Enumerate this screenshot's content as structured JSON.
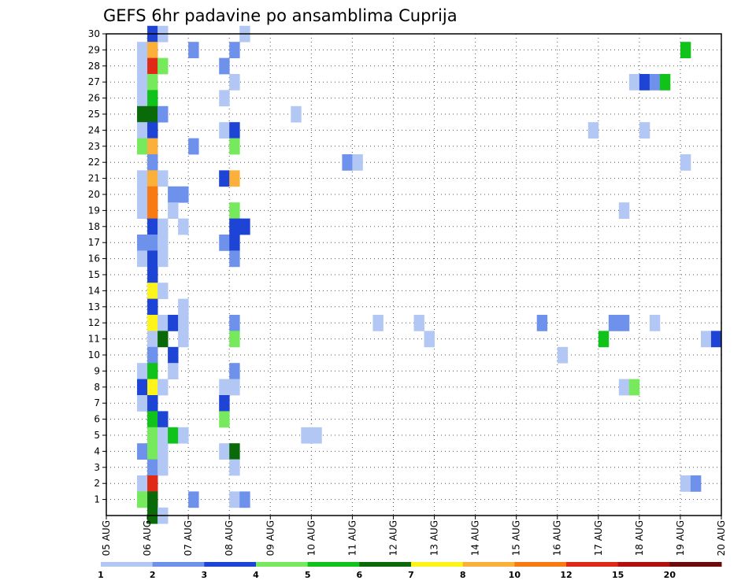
{
  "chart_data": {
    "type": "heatmap",
    "title": "GEFS 6hr padavine po ansamblima Cuprija",
    "xlabel": "",
    "ylabel": "",
    "x_dates": [
      "05 AUG",
      "06 AUG",
      "07 AUG",
      "08 AUG",
      "09 AUG",
      "10 AUG",
      "11 AUG",
      "12 AUG",
      "13 AUG",
      "14 AUG",
      "15 AUG",
      "16 AUG",
      "17 AUG",
      "18 AUG",
      "19 AUG",
      "20 AUG"
    ],
    "xlim": [
      "05 AUG 00Z",
      "20 AUG 00Z"
    ],
    "y_members": [
      "1",
      "2",
      "3",
      "4",
      "5",
      "6",
      "7",
      "8",
      "9",
      "10",
      "11",
      "12",
      "13",
      "14",
      "15",
      "16",
      "17",
      "18",
      "19",
      "20",
      "21",
      "22",
      "23",
      "24",
      "25",
      "26",
      "27",
      "28",
      "29",
      "30"
    ],
    "ylim": [
      0,
      30
    ],
    "grid": true,
    "grid_style": "dotted",
    "colorbar": {
      "labels": [
        "1",
        "2",
        "3",
        "4",
        "5",
        "6",
        "7",
        "8",
        "10",
        "12",
        "15",
        "20"
      ],
      "colors": [
        "#b3c7f5",
        "#6e92ec",
        "#1e44d6",
        "#76ea5c",
        "#10c21a",
        "#0a6a0a",
        "#fcf41a",
        "#fbb03b",
        "#f77a13",
        "#e02a18",
        "#b01010",
        "#6e0a0a"
      ]
    },
    "cell_step": "6 hours",
    "cells": [
      {
        "m": 30,
        "s": "06 AUG 00Z",
        "c": 2
      },
      {
        "m": 30,
        "s": "06 AUG 06Z",
        "c": 0
      },
      {
        "m": 30,
        "s": "08 AUG 06Z",
        "c": 0
      },
      {
        "m": 29,
        "s": "05 AUG 18Z",
        "c": 0
      },
      {
        "m": 29,
        "s": "06 AUG 00Z",
        "c": 7
      },
      {
        "m": 29,
        "s": "07 AUG 00Z",
        "c": 1
      },
      {
        "m": 29,
        "s": "08 AUG 00Z",
        "c": 1
      },
      {
        "m": 29,
        "s": "19 AUG 00Z",
        "c": 4
      },
      {
        "m": 28,
        "s": "05 AUG 18Z",
        "c": 0
      },
      {
        "m": 28,
        "s": "06 AUG 00Z",
        "c": 9
      },
      {
        "m": 28,
        "s": "06 AUG 06Z",
        "c": 3
      },
      {
        "m": 28,
        "s": "07 AUG 18Z",
        "c": 1
      },
      {
        "m": 27,
        "s": "05 AUG 18Z",
        "c": 0
      },
      {
        "m": 27,
        "s": "06 AUG 00Z",
        "c": 3
      },
      {
        "m": 27,
        "s": "08 AUG 00Z",
        "c": 0
      },
      {
        "m": 27,
        "s": "17 AUG 18Z",
        "c": 0
      },
      {
        "m": 27,
        "s": "18 AUG 00Z",
        "c": 2
      },
      {
        "m": 27,
        "s": "18 AUG 06Z",
        "c": 1
      },
      {
        "m": 27,
        "s": "18 AUG 12Z",
        "c": 4
      },
      {
        "m": 26,
        "s": "05 AUG 18Z",
        "c": 0
      },
      {
        "m": 26,
        "s": "06 AUG 00Z",
        "c": 4
      },
      {
        "m": 26,
        "s": "07 AUG 18Z",
        "c": 0
      },
      {
        "m": 25,
        "s": "05 AUG 18Z",
        "c": 5
      },
      {
        "m": 25,
        "s": "06 AUG 00Z",
        "c": 5
      },
      {
        "m": 25,
        "s": "06 AUG 06Z",
        "c": 1
      },
      {
        "m": 25,
        "s": "09 AUG 12Z",
        "c": 0
      },
      {
        "m": 24,
        "s": "05 AUG 18Z",
        "c": 0
      },
      {
        "m": 24,
        "s": "06 AUG 00Z",
        "c": 2
      },
      {
        "m": 24,
        "s": "07 AUG 18Z",
        "c": 0
      },
      {
        "m": 24,
        "s": "08 AUG 00Z",
        "c": 2
      },
      {
        "m": 24,
        "s": "16 AUG 18Z",
        "c": 0
      },
      {
        "m": 24,
        "s": "18 AUG 00Z",
        "c": 0
      },
      {
        "m": 23,
        "s": "05 AUG 18Z",
        "c": 3
      },
      {
        "m": 23,
        "s": "06 AUG 00Z",
        "c": 7
      },
      {
        "m": 23,
        "s": "07 AUG 00Z",
        "c": 1
      },
      {
        "m": 23,
        "s": "08 AUG 00Z",
        "c": 3
      },
      {
        "m": 22,
        "s": "06 AUG 00Z",
        "c": 1
      },
      {
        "m": 22,
        "s": "10 AUG 18Z",
        "c": 1
      },
      {
        "m": 22,
        "s": "11 AUG 00Z",
        "c": 0
      },
      {
        "m": 22,
        "s": "19 AUG 00Z",
        "c": 0
      },
      {
        "m": 21,
        "s": "05 AUG 18Z",
        "c": 0
      },
      {
        "m": 21,
        "s": "06 AUG 00Z",
        "c": 7
      },
      {
        "m": 21,
        "s": "06 AUG 06Z",
        "c": 0
      },
      {
        "m": 21,
        "s": "07 AUG 18Z",
        "c": 2
      },
      {
        "m": 21,
        "s": "08 AUG 00Z",
        "c": 7
      },
      {
        "m": 20,
        "s": "05 AUG 18Z",
        "c": 0
      },
      {
        "m": 20,
        "s": "06 AUG 00Z",
        "c": 8
      },
      {
        "m": 20,
        "s": "06 AUG 12Z",
        "c": 1
      },
      {
        "m": 20,
        "s": "06 AUG 18Z",
        "c": 1
      },
      {
        "m": 19,
        "s": "05 AUG 18Z",
        "c": 0
      },
      {
        "m": 19,
        "s": "06 AUG 00Z",
        "c": 8
      },
      {
        "m": 19,
        "s": "06 AUG 12Z",
        "c": 0
      },
      {
        "m": 19,
        "s": "08 AUG 00Z",
        "c": 3
      },
      {
        "m": 19,
        "s": "17 AUG 12Z",
        "c": 0
      },
      {
        "m": 18,
        "s": "06 AUG 00Z",
        "c": 2
      },
      {
        "m": 18,
        "s": "06 AUG 06Z",
        "c": 0
      },
      {
        "m": 18,
        "s": "06 AUG 18Z",
        "c": 0
      },
      {
        "m": 18,
        "s": "08 AUG 00Z",
        "c": 2
      },
      {
        "m": 18,
        "s": "08 AUG 06Z",
        "c": 2
      },
      {
        "m": 17,
        "s": "05 AUG 18Z",
        "c": 1
      },
      {
        "m": 17,
        "s": "06 AUG 00Z",
        "c": 1
      },
      {
        "m": 17,
        "s": "06 AUG 06Z",
        "c": 0
      },
      {
        "m": 17,
        "s": "07 AUG 18Z",
        "c": 1
      },
      {
        "m": 17,
        "s": "08 AUG 00Z",
        "c": 2
      },
      {
        "m": 16,
        "s": "05 AUG 18Z",
        "c": 0
      },
      {
        "m": 16,
        "s": "06 AUG 00Z",
        "c": 2
      },
      {
        "m": 16,
        "s": "06 AUG 06Z",
        "c": 0
      },
      {
        "m": 16,
        "s": "08 AUG 00Z",
        "c": 1
      },
      {
        "m": 15,
        "s": "06 AUG 00Z",
        "c": 2
      },
      {
        "m": 14,
        "s": "06 AUG 00Z",
        "c": 6
      },
      {
        "m": 14,
        "s": "06 AUG 06Z",
        "c": 0
      },
      {
        "m": 13,
        "s": "06 AUG 00Z",
        "c": 2
      },
      {
        "m": 13,
        "s": "06 AUG 18Z",
        "c": 0
      },
      {
        "m": 12,
        "s": "06 AUG 00Z",
        "c": 6
      },
      {
        "m": 12,
        "s": "06 AUG 06Z",
        "c": 0
      },
      {
        "m": 12,
        "s": "06 AUG 12Z",
        "c": 2
      },
      {
        "m": 12,
        "s": "06 AUG 18Z",
        "c": 0
      },
      {
        "m": 12,
        "s": "08 AUG 00Z",
        "c": 1
      },
      {
        "m": 12,
        "s": "11 AUG 12Z",
        "c": 0
      },
      {
        "m": 12,
        "s": "12 AUG 12Z",
        "c": 0
      },
      {
        "m": 12,
        "s": "15 AUG 12Z",
        "c": 1
      },
      {
        "m": 12,
        "s": "17 AUG 06Z",
        "c": 1
      },
      {
        "m": 12,
        "s": "17 AUG 12Z",
        "c": 1
      },
      {
        "m": 12,
        "s": "18 AUG 06Z",
        "c": 0
      },
      {
        "m": 11,
        "s": "06 AUG 00Z",
        "c": 0
      },
      {
        "m": 11,
        "s": "06 AUG 06Z",
        "c": 5
      },
      {
        "m": 11,
        "s": "06 AUG 18Z",
        "c": 0
      },
      {
        "m": 11,
        "s": "08 AUG 00Z",
        "c": 3
      },
      {
        "m": 11,
        "s": "12 AUG 18Z",
        "c": 0
      },
      {
        "m": 11,
        "s": "17 AUG 00Z",
        "c": 4
      },
      {
        "m": 11,
        "s": "19 AUG 12Z",
        "c": 0
      },
      {
        "m": 11,
        "s": "19 AUG 18Z",
        "c": 2
      },
      {
        "m": 10,
        "s": "06 AUG 00Z",
        "c": 1
      },
      {
        "m": 10,
        "s": "06 AUG 12Z",
        "c": 2
      },
      {
        "m": 10,
        "s": "16 AUG 00Z",
        "c": 0
      },
      {
        "m": 9,
        "s": "05 AUG 18Z",
        "c": 0
      },
      {
        "m": 9,
        "s": "06 AUG 00Z",
        "c": 4
      },
      {
        "m": 9,
        "s": "06 AUG 12Z",
        "c": 0
      },
      {
        "m": 9,
        "s": "08 AUG 00Z",
        "c": 1
      },
      {
        "m": 8,
        "s": "05 AUG 18Z",
        "c": 2
      },
      {
        "m": 8,
        "s": "06 AUG 00Z",
        "c": 6
      },
      {
        "m": 8,
        "s": "06 AUG 06Z",
        "c": 0
      },
      {
        "m": 8,
        "s": "07 AUG 18Z",
        "c": 0
      },
      {
        "m": 8,
        "s": "08 AUG 00Z",
        "c": 0
      },
      {
        "m": 8,
        "s": "17 AUG 12Z",
        "c": 0
      },
      {
        "m": 8,
        "s": "17 AUG 18Z",
        "c": 3
      },
      {
        "m": 7,
        "s": "05 AUG 18Z",
        "c": 0
      },
      {
        "m": 7,
        "s": "06 AUG 00Z",
        "c": 2
      },
      {
        "m": 7,
        "s": "07 AUG 18Z",
        "c": 2
      },
      {
        "m": 6,
        "s": "06 AUG 00Z",
        "c": 4
      },
      {
        "m": 6,
        "s": "06 AUG 06Z",
        "c": 2
      },
      {
        "m": 6,
        "s": "07 AUG 18Z",
        "c": 3
      },
      {
        "m": 5,
        "s": "06 AUG 00Z",
        "c": 3
      },
      {
        "m": 5,
        "s": "06 AUG 06Z",
        "c": 0
      },
      {
        "m": 5,
        "s": "06 AUG 12Z",
        "c": 4
      },
      {
        "m": 5,
        "s": "06 AUG 18Z",
        "c": 0
      },
      {
        "m": 5,
        "s": "09 AUG 18Z",
        "c": 0
      },
      {
        "m": 5,
        "s": "10 AUG 00Z",
        "c": 0
      },
      {
        "m": 4,
        "s": "05 AUG 18Z",
        "c": 1
      },
      {
        "m": 4,
        "s": "06 AUG 00Z",
        "c": 3
      },
      {
        "m": 4,
        "s": "06 AUG 06Z",
        "c": 0
      },
      {
        "m": 4,
        "s": "07 AUG 18Z",
        "c": 0
      },
      {
        "m": 4,
        "s": "08 AUG 00Z",
        "c": 5
      },
      {
        "m": 3,
        "s": "06 AUG 00Z",
        "c": 1
      },
      {
        "m": 3,
        "s": "06 AUG 06Z",
        "c": 0
      },
      {
        "m": 3,
        "s": "08 AUG 00Z",
        "c": 0
      },
      {
        "m": 2,
        "s": "05 AUG 18Z",
        "c": 0
      },
      {
        "m": 2,
        "s": "06 AUG 00Z",
        "c": 9
      },
      {
        "m": 2,
        "s": "19 AUG 00Z",
        "c": 0
      },
      {
        "m": 2,
        "s": "19 AUG 06Z",
        "c": 1
      },
      {
        "m": 1,
        "s": "05 AUG 18Z",
        "c": 3
      },
      {
        "m": 1,
        "s": "06 AUG 00Z",
        "c": 5
      },
      {
        "m": 1,
        "s": "07 AUG 00Z",
        "c": 1
      },
      {
        "m": 1,
        "s": "08 AUG 00Z",
        "c": 0
      },
      {
        "m": 1,
        "s": "08 AUG 06Z",
        "c": 1
      },
      {
        "m": 0,
        "s": "06 AUG 00Z",
        "c": 5
      },
      {
        "m": 0,
        "s": "06 AUG 06Z",
        "c": 0
      }
    ]
  }
}
